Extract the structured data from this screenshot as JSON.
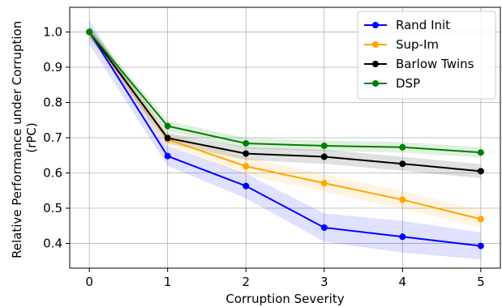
{
  "chart_data": {
    "type": "line",
    "xlabel": "Corruption Severity",
    "ylabel_lines": [
      "Relative Performance under Corruption",
      "(rPC)"
    ],
    "x": [
      0,
      1,
      2,
      3,
      4,
      5
    ],
    "xticks": [
      0,
      1,
      2,
      3,
      4,
      5
    ],
    "xlim": [
      -0.25,
      5.25
    ],
    "yticks": [
      0.4,
      0.5,
      0.6,
      0.7,
      0.8,
      0.9,
      1.0
    ],
    "ylim": [
      0.33,
      1.07
    ],
    "grid": true,
    "legend_position": "top-right",
    "series": [
      {
        "name": "Rand Init",
        "color": "#0000ff",
        "values": [
          1.0,
          0.648,
          0.563,
          0.445,
          0.419,
          0.393
        ],
        "band": [
          0.035,
          0.028,
          0.035,
          0.04,
          0.045,
          0.038
        ]
      },
      {
        "name": "Sup-Im",
        "color": "#ffa500",
        "values": [
          1.0,
          0.695,
          0.619,
          0.571,
          0.524,
          0.469
        ],
        "band": [
          0.02,
          0.018,
          0.025,
          0.025,
          0.025,
          0.025
        ]
      },
      {
        "name": "Barlow Twins",
        "color": "#000000",
        "values": [
          1.0,
          0.699,
          0.655,
          0.646,
          0.626,
          0.605
        ],
        "band": [
          0.015,
          0.015,
          0.018,
          0.02,
          0.02,
          0.02
        ]
      },
      {
        "name": "DSP",
        "color": "#008000",
        "values": [
          1.0,
          0.733,
          0.684,
          0.677,
          0.673,
          0.658
        ],
        "band": [
          0.015,
          0.015,
          0.015,
          0.015,
          0.015,
          0.015
        ]
      }
    ]
  }
}
